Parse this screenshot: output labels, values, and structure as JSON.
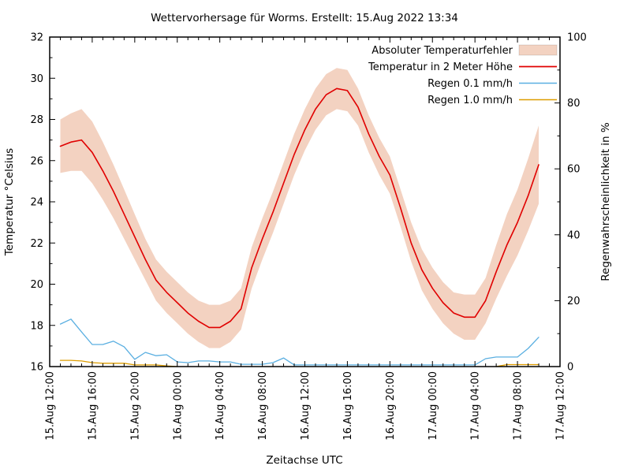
{
  "chart_data": {
    "type": "line",
    "title": "Wettervorhersage für Worms. Erstellt: 15.Aug 2022 13:34",
    "xlabel": "Zeitachse UTC",
    "ylabel": "Temperatur °Celsius",
    "y2label": "Regenwahrscheinlichkeit in %",
    "ylim": [
      16,
      32
    ],
    "y2lim": [
      0,
      100
    ],
    "xlim_hours": [
      0,
      48
    ],
    "grid": false,
    "legend_position": "top-right-inside",
    "x_ticks": {
      "positions_hours": [
        0,
        4,
        8,
        12,
        16,
        20,
        24,
        28,
        32,
        36,
        40,
        44,
        48
      ],
      "labels": [
        "15.Aug 12:00",
        "15.Aug 16:00",
        "15.Aug 20:00",
        "16.Aug 00:00",
        "16.Aug 04:00",
        "16.Aug 08:00",
        "16.Aug 12:00",
        "16.Aug 16:00",
        "16.Aug 20:00",
        "17.Aug 00:00",
        "17.Aug 04:00",
        "17.Aug 08:00",
        "17.Aug 12:00"
      ],
      "minor_step_hours": 1
    },
    "y_ticks": [
      16,
      18,
      20,
      22,
      24,
      26,
      28,
      30,
      32
    ],
    "y2_ticks": [
      0,
      20,
      40,
      60,
      80,
      100
    ],
    "x_hours": [
      1,
      2,
      3,
      4,
      5,
      6,
      7,
      8,
      9,
      10,
      11,
      12,
      13,
      14,
      15,
      16,
      17,
      18,
      19,
      20,
      21,
      22,
      23,
      24,
      25,
      26,
      27,
      28,
      29,
      30,
      31,
      32,
      33,
      34,
      35,
      36,
      37,
      38,
      39,
      40,
      41,
      42,
      43,
      44,
      45,
      46
    ],
    "series": [
      {
        "name": "Absoluter Temperaturfehler",
        "type": "band",
        "axis": "left",
        "color": "#f3d2c1",
        "upper": [
          28.0,
          28.3,
          28.5,
          27.9,
          26.9,
          25.8,
          24.6,
          23.4,
          22.2,
          21.2,
          20.6,
          20.1,
          19.6,
          19.2,
          19.0,
          19.0,
          19.2,
          19.8,
          21.8,
          23.2,
          24.5,
          25.9,
          27.3,
          28.5,
          29.5,
          30.2,
          30.5,
          30.4,
          29.5,
          28.2,
          27.1,
          26.2,
          24.6,
          23.0,
          21.7,
          20.8,
          20.1,
          19.6,
          19.5,
          19.5,
          20.3,
          21.9,
          23.4,
          24.6,
          26.1,
          27.7
        ],
        "lower": [
          25.4,
          25.5,
          25.5,
          24.9,
          24.1,
          23.2,
          22.2,
          21.2,
          20.2,
          19.2,
          18.6,
          18.1,
          17.6,
          17.2,
          16.9,
          16.9,
          17.2,
          17.8,
          19.8,
          21.2,
          22.5,
          23.9,
          25.3,
          26.5,
          27.5,
          28.2,
          28.5,
          28.4,
          27.7,
          26.4,
          25.3,
          24.4,
          22.8,
          21.1,
          19.7,
          18.8,
          18.1,
          17.6,
          17.3,
          17.3,
          18.1,
          19.3,
          20.4,
          21.4,
          22.6,
          23.9
        ]
      },
      {
        "name": "Temperatur in 2 Meter Höhe",
        "type": "line",
        "axis": "left",
        "color": "#e00000",
        "values": [
          26.7,
          26.9,
          27.0,
          26.4,
          25.5,
          24.5,
          23.4,
          22.3,
          21.2,
          20.2,
          19.6,
          19.1,
          18.6,
          18.2,
          17.9,
          17.9,
          18.2,
          18.8,
          20.8,
          22.2,
          23.5,
          24.9,
          26.3,
          27.5,
          28.5,
          29.2,
          29.5,
          29.4,
          28.6,
          27.3,
          26.2,
          25.3,
          23.7,
          22.0,
          20.7,
          19.8,
          19.1,
          18.6,
          18.4,
          18.4,
          19.2,
          20.6,
          21.9,
          23.0,
          24.3,
          25.8
        ]
      },
      {
        "name": "Regen 0.1 mm/h",
        "type": "line",
        "axis": "right",
        "color": "#5aafe1",
        "values": [
          12.9,
          14.4,
          10.5,
          6.7,
          6.7,
          7.7,
          6.0,
          2.2,
          4.3,
          3.3,
          3.6,
          1.4,
          1.2,
          1.7,
          1.7,
          1.4,
          1.4,
          0.7,
          0.7,
          0.7,
          1.2,
          2.6,
          0.5,
          0.5,
          0.5,
          0.5,
          0.5,
          0.5,
          0.5,
          0.5,
          0.5,
          0.5,
          0.5,
          0.5,
          0.5,
          0.5,
          0.5,
          0.5,
          0.5,
          0.5,
          2.4,
          2.9,
          2.9,
          2.9,
          5.5,
          8.9
        ]
      },
      {
        "name": "Regen 1.0 mm/h",
        "type": "line",
        "axis": "right",
        "color": "#dd9d00",
        "values": [
          1.9,
          1.9,
          1.7,
          1.2,
          1.0,
          1.0,
          1.0,
          0.5,
          0.5,
          0.5,
          0.2,
          0.0,
          null,
          null,
          null,
          null,
          null,
          null,
          null,
          null,
          null,
          null,
          null,
          null,
          null,
          null,
          null,
          null,
          null,
          null,
          null,
          null,
          null,
          null,
          null,
          null,
          null,
          null,
          null,
          null,
          null,
          0.0,
          0.6,
          0.6,
          0.6,
          0.6
        ]
      }
    ]
  }
}
